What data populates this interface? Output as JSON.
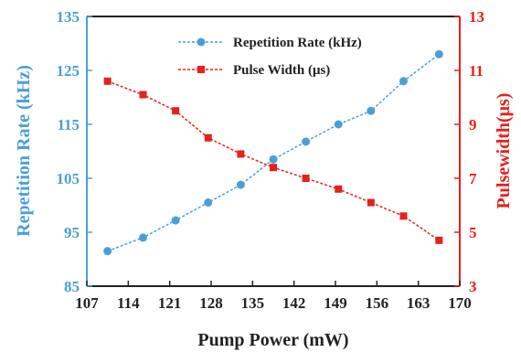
{
  "chart_data": {
    "type": "line",
    "xlabel": "Pump Power (mW)",
    "x_ticks": [
      "107",
      "114",
      "121",
      "128",
      "135",
      "142",
      "149",
      "156",
      "163",
      "170"
    ],
    "xlim": [
      107,
      170
    ],
    "y_left": {
      "label": "Repetition Rate (kHz)",
      "ticks": [
        "85",
        "95",
        "105",
        "115",
        "125",
        "135"
      ],
      "lim": [
        85,
        135
      ],
      "color": "#4a9fd8"
    },
    "y_right": {
      "label": "Pulsewidth(μs)",
      "ticks": [
        "3",
        "5",
        "7",
        "9",
        "11",
        "13"
      ],
      "lim": [
        3,
        13
      ],
      "color": "#e8201a"
    },
    "x": [
      110.5,
      116.5,
      122,
      127.5,
      133,
      138.5,
      144,
      149.5,
      155,
      160.5,
      166.5
    ],
    "series": [
      {
        "name": "Repetition Rate (kHz)",
        "axis": "left",
        "color": "#4a9fd8",
        "marker": "circle",
        "values": [
          91.5,
          94.0,
          97.2,
          100.5,
          103.8,
          108.5,
          111.8,
          115.0,
          117.5,
          123.0,
          128.0
        ]
      },
      {
        "name": "Pulse Width (μs)",
        "axis": "right",
        "color": "#e8201a",
        "marker": "square",
        "values": [
          10.6,
          10.1,
          9.5,
          8.5,
          7.9,
          7.4,
          7.0,
          6.6,
          6.1,
          5.6,
          4.7
        ]
      }
    ],
    "legend": "top-center",
    "grid": false
  }
}
